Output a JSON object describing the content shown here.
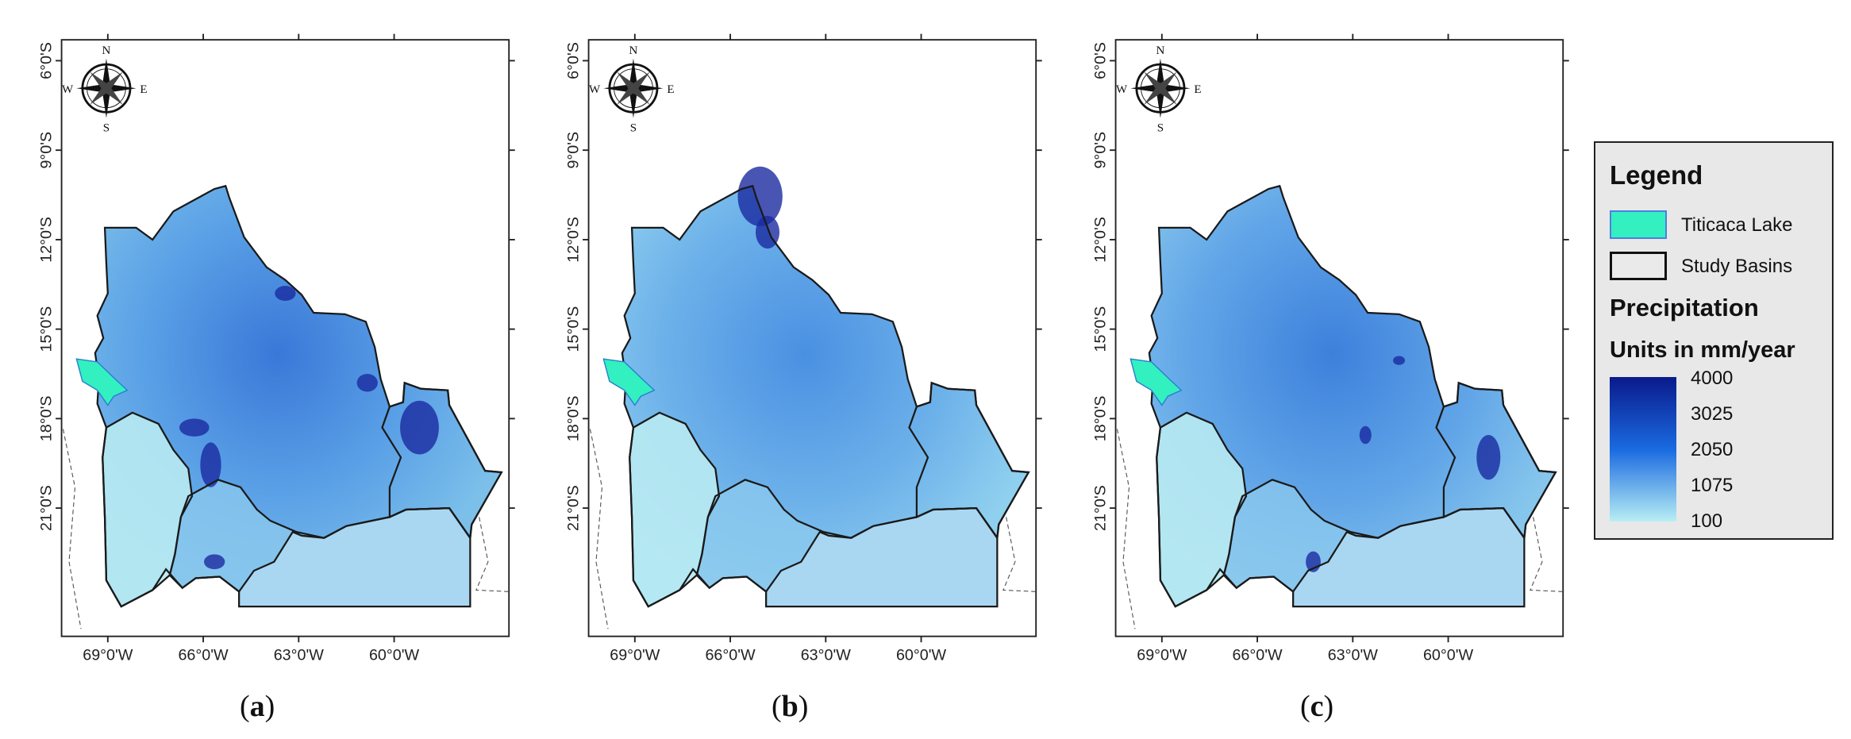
{
  "panels": [
    {
      "id": "a",
      "caption": "a",
      "intensity": "high"
    },
    {
      "id": "b",
      "caption": "b",
      "intensity": "smooth"
    },
    {
      "id": "c",
      "caption": "c",
      "intensity": "grid"
    }
  ],
  "axis": {
    "lat_labels": [
      "6°0'S",
      "9°0'S",
      "12°0'S",
      "15°0'S",
      "18°0'S",
      "21°0'S"
    ],
    "lon_labels": [
      "69°0'W",
      "66°0'W",
      "63°0'W",
      "60°0'W"
    ]
  },
  "compass": {
    "n": "N",
    "s": "S",
    "e": "E",
    "w": "W"
  },
  "legend": {
    "title": "Legend",
    "lake_label": "Titicaca Lake",
    "basins_label": "Study Basins",
    "precip_title": "Precipitation",
    "units_title": "Units in mm/year",
    "ramp_values": [
      "4000",
      "3025",
      "2050",
      "1075",
      "100"
    ],
    "colors": {
      "lake": "#33f0c0",
      "ramp_high": "#0a1a8c",
      "ramp_mid": "#1a6ae0",
      "ramp_low": "#b8eef4"
    }
  }
}
